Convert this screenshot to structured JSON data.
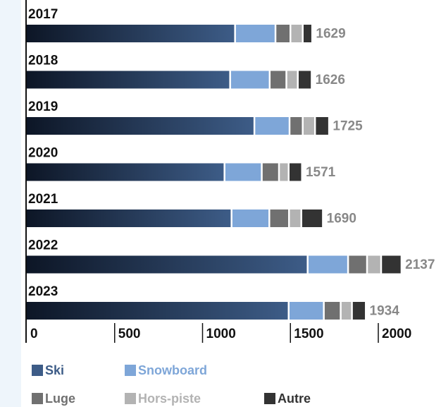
{
  "chart_data": {
    "type": "bar",
    "orientation": "horizontal",
    "stacked": true,
    "categories": [
      "2017",
      "2018",
      "2019",
      "2020",
      "2021",
      "2022",
      "2023"
    ],
    "series": [
      {
        "name": "Ski",
        "color": "#3d5c87",
        "values": [
          1190,
          1162,
          1300,
          1130,
          1170,
          1603,
          1495
        ]
      },
      {
        "name": "Snowboard",
        "color": "#7ea6d8",
        "values": [
          230,
          225,
          200,
          212,
          215,
          230,
          200
        ]
      },
      {
        "name": "Luge",
        "color": "#707070",
        "values": [
          85,
          95,
          75,
          98,
          112,
          108,
          96
        ]
      },
      {
        "name": "Hors-piste",
        "color": "#b3b3b3",
        "values": [
          70,
          65,
          70,
          55,
          70,
          80,
          64
        ]
      },
      {
        "name": "Autre",
        "color": "#333333",
        "values": [
          54,
          79,
          80,
          76,
          123,
          116,
          79
        ]
      }
    ],
    "totals": [
      1629,
      1626,
      1725,
      1571,
      1690,
      2137,
      1934
    ],
    "xlim": [
      0,
      2000
    ],
    "xticks": [
      0,
      500,
      1000,
      1500,
      2000
    ]
  }
}
